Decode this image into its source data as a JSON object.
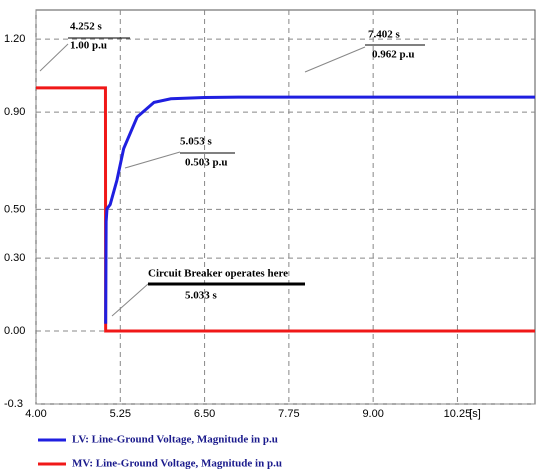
{
  "chart_data": {
    "type": "line",
    "x_label": "[s]",
    "xlim": [
      4,
      11.4
    ],
    "ylim": [
      -0.3,
      1.32
    ],
    "xticks": [
      {
        "value": 4,
        "label": "4.00"
      },
      5.25,
      {
        "value": 6.5,
        "label": "6.50"
      },
      7.75,
      {
        "value": 9,
        "label": "9.00"
      },
      10.25
    ],
    "yticks": [
      {
        "value": 1.2,
        "label": "1.20"
      },
      {
        "value": 0.9,
        "label": "0.90"
      },
      {
        "value": 0.5,
        "label": "0.50"
      },
      {
        "value": 0.3,
        "label": "0.30"
      },
      {
        "value": 0,
        "label": "0.00"
      },
      -0.3
    ],
    "grid": true,
    "legend": "bottom-left",
    "series": [
      {
        "name": "LV: Line-Ground Voltage, Magnitude in p.u",
        "color": "#1f1fe0",
        "x": [
          5.033,
          5.04,
          5.053,
          5.1,
          5.2,
          5.3,
          5.5,
          5.75,
          6,
          6.5,
          7,
          7.402,
          8,
          9,
          10,
          11.4
        ],
        "values": [
          0.03,
          0.45,
          0.503,
          0.52,
          0.62,
          0.75,
          0.88,
          0.94,
          0.955,
          0.96,
          0.962,
          0.962,
          0.962,
          0.962,
          0.962,
          0.962
        ]
      },
      {
        "name": "MV: Line-Ground Voltage, Magnitude in p.u",
        "color": "#f01818",
        "x": [
          4,
          4.252,
          5.03,
          5.033,
          11.4
        ],
        "values": [
          1.0,
          1.0,
          1.0,
          0,
          0
        ]
      }
    ],
    "annotations": [
      "4.252 s",
      "1.00 p.u",
      "7.402 s",
      "0.962 p.u",
      "5.053 s",
      "0.503 p.u",
      "Circuit Breaker operates here",
      "5.033 s"
    ]
  }
}
